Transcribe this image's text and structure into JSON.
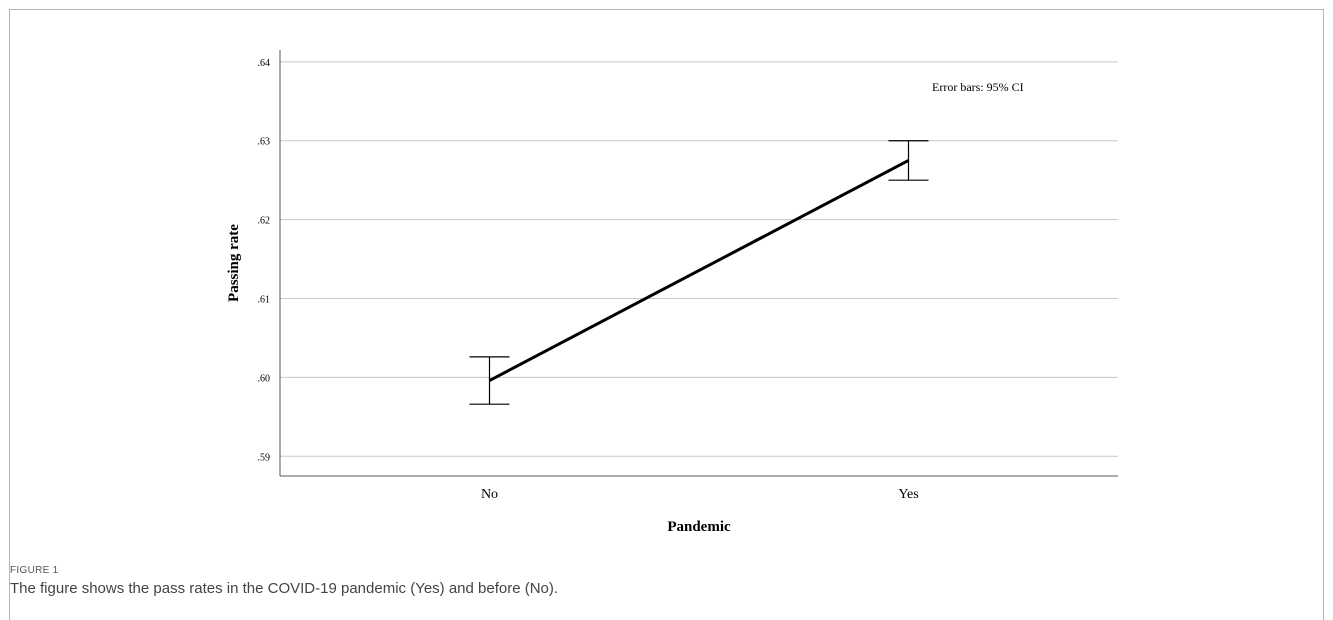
{
  "chart_data": {
    "type": "line",
    "categories": [
      "No",
      "Yes"
    ],
    "series": [
      {
        "values": [
          0.5996,
          0.6275
        ],
        "ci_lower": [
          0.5966,
          0.625
        ],
        "ci_upper": [
          0.6026,
          0.63
        ]
      }
    ],
    "xlabel": "Pandemic",
    "ylabel": "Passing rate",
    "ylim": [
      0.5875,
      0.6415
    ],
    "yticks": [
      0.59,
      0.6,
      0.61,
      0.62,
      0.63,
      0.64
    ],
    "ytick_labels": [
      ".59",
      ".60",
      ".61",
      ".62",
      ".63",
      ".64"
    ],
    "grid": true,
    "annotation": "Error bars: 95% CI",
    "colors": {
      "line": "#000000",
      "grid": "#c8c8c8",
      "axis": "#555555"
    }
  },
  "figure": {
    "label": "FIGURE 1",
    "caption": "The figure shows the pass rates in the COVID-19 pandemic (Yes) and before (No)."
  }
}
